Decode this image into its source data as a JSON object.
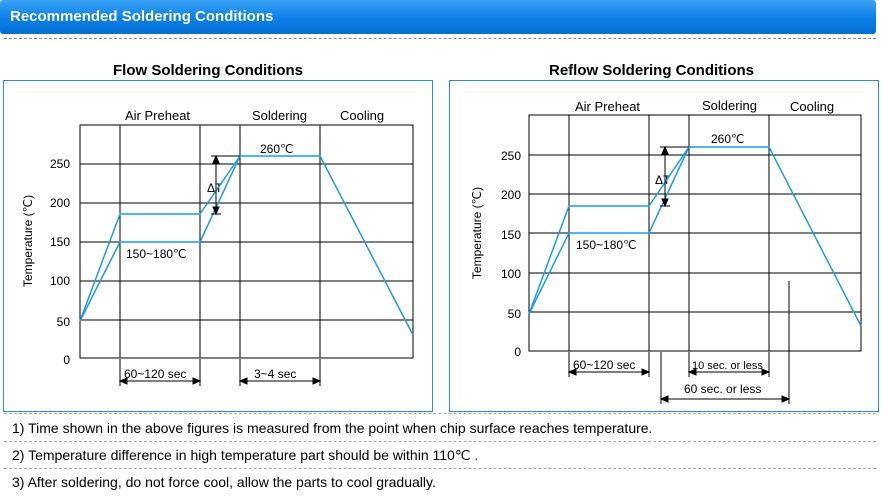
{
  "header": {
    "title": "Recommended Soldering Conditions"
  },
  "flow": {
    "title": "Flow Soldering Conditions",
    "phases": {
      "preheat": "Air Preheat",
      "soldering": "Soldering",
      "cooling": "Cooling"
    },
    "ylabel": "Temperature (℃)",
    "yticks": [
      "250",
      "200",
      "150",
      "100",
      "50",
      "0"
    ],
    "peak_label": "260℃",
    "dt_label": "ΔT",
    "preheat_label": "150~180℃",
    "dim1": "60~120 sec",
    "dim2": "3~4 sec"
  },
  "reflow": {
    "title": "Reflow Soldering Conditions",
    "phases": {
      "preheat": "Air Preheat",
      "soldering": "Soldering",
      "cooling": "Cooling"
    },
    "ylabel": "Temperature (℃)",
    "yticks": [
      "250",
      "200",
      "150",
      "100",
      "50",
      "0"
    ],
    "peak_label": "260℃",
    "dt_label": "ΔT",
    "preheat_label": "150~180℃",
    "dim1": "60~120 sec",
    "dim2": "10 sec. or less",
    "dim3": "60 sec. or less"
  },
  "notes": [
    "1) Time shown in the above figures is measured from the point when chip surface reaches temperature.",
    "2) Temperature difference in high temperature part should be within 110℃ .",
    "3) After soldering, do not force cool, allow the parts to cool gradually."
  ],
  "colors": {
    "header": "#0b7fe8",
    "curve": "#1f9be6",
    "border": "#2b8de0"
  }
}
